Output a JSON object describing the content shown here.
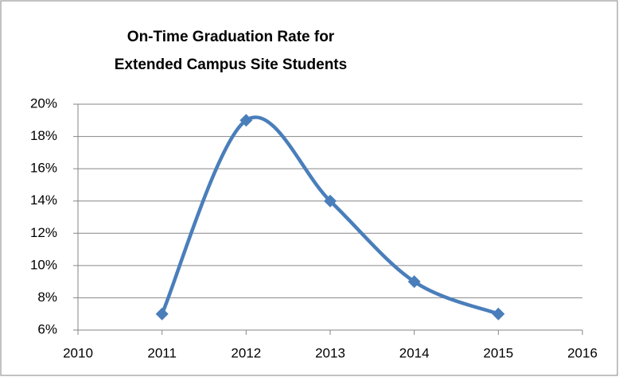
{
  "chart_data": {
    "type": "line",
    "title": [
      "On-Time Graduation Rate for",
      "Extended Campus Site Students"
    ],
    "x": [
      2011,
      2012,
      2013,
      2014,
      2015
    ],
    "series": [
      {
        "color": "#4a7ebb",
        "values": [
          7,
          19,
          14,
          9,
          7
        ]
      }
    ],
    "smooth": true,
    "xlim": [
      2010,
      2016
    ],
    "xticks": [
      2010,
      2011,
      2012,
      2013,
      2014,
      2015,
      2016
    ],
    "ylim": [
      6,
      20
    ],
    "yticks": [
      {
        "value": 6,
        "label": "6%"
      },
      {
        "value": 8,
        "label": "8%"
      },
      {
        "value": 10,
        "label": "10%"
      },
      {
        "value": 12,
        "label": "12%"
      },
      {
        "value": 14,
        "label": "14%"
      },
      {
        "value": 16,
        "label": "16%"
      },
      {
        "value": 18,
        "label": "18%"
      },
      {
        "value": 20,
        "label": "20%"
      }
    ],
    "grid": true
  }
}
